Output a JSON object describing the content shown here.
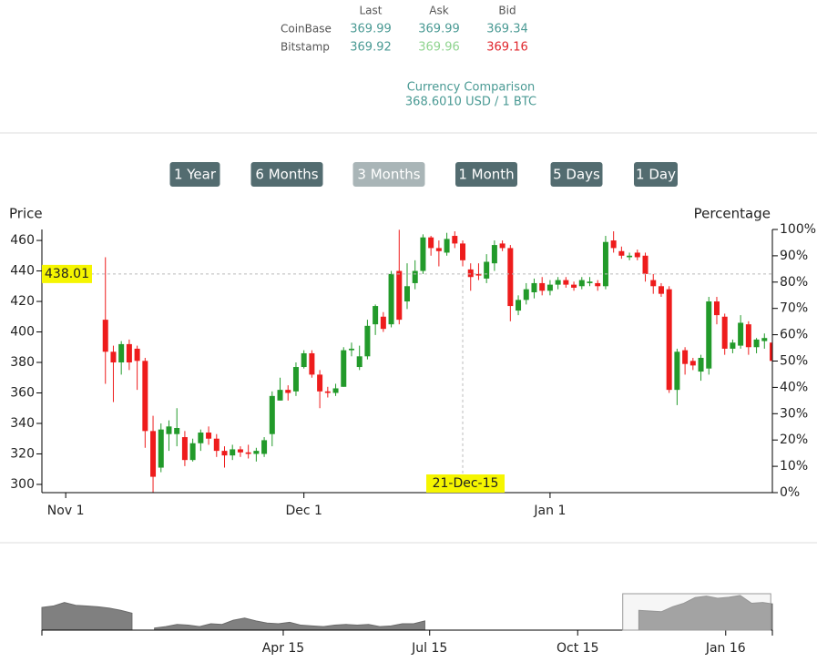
{
  "ticker": {
    "columns": [
      "Last",
      "Ask",
      "Bid"
    ],
    "rows": [
      {
        "exchange": "CoinBase",
        "values": [
          369.99,
          369.99,
          369.34
        ],
        "colors": [
          "#4a9a94",
          "#4a9a94",
          "#4a9a94"
        ]
      },
      {
        "exchange": "Bitstamp",
        "values": [
          369.92,
          369.96,
          369.16
        ],
        "colors": [
          "#4a9a94",
          "#8fd48f",
          "#e0272d"
        ]
      }
    ]
  },
  "comparison": {
    "title": "Currency Comparison",
    "rate": "368.6010 USD / 1 BTC"
  },
  "range_buttons": {
    "labels": [
      "1 Year",
      "6 Months",
      "3 Months",
      "1 Month",
      "5 Days",
      "1 Day"
    ],
    "active_index": 2
  },
  "chart_data": [
    {
      "type": "candlestick",
      "ylabel": "Price",
      "y2label": "Percentage",
      "up_color": "#229a2a",
      "down_color": "#ee1c1c",
      "xlim": [
        "2015-10-29",
        "2016-01-29"
      ],
      "xticks": [
        {
          "value": "2015-11-01",
          "label": "Nov 1"
        },
        {
          "value": "2015-12-01",
          "label": "Dec 1"
        },
        {
          "value": "2016-01-01",
          "label": "Jan 1"
        }
      ],
      "ylim": [
        294.6,
        467.2
      ],
      "yticks": [
        300,
        320,
        340,
        360,
        380,
        400,
        420,
        440,
        460
      ],
      "y2lim": [
        0,
        100
      ],
      "y2ticks": [
        {
          "value": 0,
          "label": "0%"
        },
        {
          "value": 10,
          "label": "10%"
        },
        {
          "value": 20,
          "label": "20%"
        },
        {
          "value": 30,
          "label": "30%"
        },
        {
          "value": 40,
          "label": "40%"
        },
        {
          "value": 50,
          "label": "50%"
        },
        {
          "value": 60,
          "label": "60%"
        },
        {
          "value": 70,
          "label": "70%"
        },
        {
          "value": 80,
          "label": "80%"
        },
        {
          "value": 90,
          "label": "90%"
        },
        {
          "value": 100,
          "label": "100%"
        }
      ],
      "crosshair": {
        "value": 438.01,
        "date": "2015-12-21",
        "date_label": "21-Dec-15"
      },
      "x": [
        "2015-11-06",
        "2015-11-07",
        "2015-11-08",
        "2015-11-09",
        "2015-11-10",
        "2015-11-11",
        "2015-11-12",
        "2015-11-13",
        "2015-11-14",
        "2015-11-15",
        "2015-11-16",
        "2015-11-17",
        "2015-11-18",
        "2015-11-19",
        "2015-11-20",
        "2015-11-21",
        "2015-11-22",
        "2015-11-23",
        "2015-11-24",
        "2015-11-25",
        "2015-11-26",
        "2015-11-27",
        "2015-11-28",
        "2015-11-29",
        "2015-11-30",
        "2015-12-01",
        "2015-12-02",
        "2015-12-03",
        "2015-12-04",
        "2015-12-05",
        "2015-12-06",
        "2015-12-07",
        "2015-12-08",
        "2015-12-09",
        "2015-12-10",
        "2015-12-11",
        "2015-12-12",
        "2015-12-13",
        "2015-12-14",
        "2015-12-15",
        "2015-12-16",
        "2015-12-17",
        "2015-12-18",
        "2015-12-19",
        "2015-12-20",
        "2015-12-21",
        "2015-12-22",
        "2015-12-23",
        "2015-12-24",
        "2015-12-25",
        "2015-12-26",
        "2015-12-27",
        "2015-12-28",
        "2015-12-29",
        "2015-12-30",
        "2015-12-31",
        "2016-01-01",
        "2016-01-02",
        "2016-01-03",
        "2016-01-04",
        "2016-01-05",
        "2016-01-06",
        "2016-01-07",
        "2016-01-08",
        "2016-01-09",
        "2016-01-10",
        "2016-01-11",
        "2016-01-12",
        "2016-01-13",
        "2016-01-14",
        "2016-01-15",
        "2016-01-16",
        "2016-01-17",
        "2016-01-18",
        "2016-01-19",
        "2016-01-20",
        "2016-01-21",
        "2016-01-22",
        "2016-01-23",
        "2016-01-24",
        "2016-01-25",
        "2016-01-26",
        "2016-01-27",
        "2016-01-28",
        "2016-01-29"
      ],
      "open": [
        408,
        387,
        380,
        392,
        389,
        381,
        335,
        311,
        333,
        333,
        331,
        316,
        327,
        334,
        330,
        322,
        319,
        323,
        321,
        320,
        320,
        333,
        355,
        362,
        361,
        377,
        386,
        372,
        361,
        360,
        364,
        388,
        377,
        384,
        405,
        410,
        405,
        440,
        420,
        432,
        440,
        462,
        455,
        452,
        463,
        458,
        441,
        438,
        435,
        445,
        458,
        455,
        414,
        421,
        426,
        432,
        427,
        431,
        434,
        431,
        430,
        432,
        432,
        430,
        460,
        453,
        449,
        452,
        450,
        434,
        430,
        428,
        362,
        388,
        381,
        374,
        376,
        420,
        410,
        389,
        391,
        405,
        390,
        394,
        393
      ],
      "high": [
        449,
        391,
        394,
        395,
        391,
        383,
        345,
        340,
        342,
        350,
        335,
        330,
        336,
        338,
        333,
        325,
        326,
        325,
        326,
        324,
        331,
        361,
        370,
        365,
        380,
        388,
        388,
        375,
        364,
        366,
        390,
        393,
        391,
        408,
        418,
        413,
        440,
        467,
        445,
        447,
        464,
        463,
        460,
        465,
        466,
        460,
        445,
        445,
        451,
        460,
        460,
        457,
        424,
        432,
        435,
        436,
        434,
        436,
        436,
        433,
        436,
        436,
        434,
        463,
        466,
        456,
        452,
        454,
        452,
        438,
        432,
        430,
        389,
        390,
        383,
        385,
        423,
        423,
        412,
        395,
        411,
        407,
        396,
        399,
        396
      ],
      "low": [
        366,
        354,
        372,
        375,
        362,
        324,
        294,
        308,
        322,
        325,
        312,
        315,
        322,
        326,
        318,
        311,
        316,
        318,
        317,
        315,
        318,
        325,
        355,
        355,
        358,
        376,
        370,
        350,
        357,
        358,
        364,
        384,
        375,
        382,
        398,
        400,
        403,
        405,
        415,
        428,
        438,
        450,
        443,
        450,
        455,
        443,
        427,
        434,
        432,
        440,
        453,
        407,
        411,
        418,
        422,
        424,
        424,
        428,
        429,
        427,
        428,
        430,
        427,
        428,
        452,
        448,
        447,
        447,
        433,
        425,
        423,
        360,
        352,
        372,
        375,
        368,
        372,
        405,
        385,
        386,
        389,
        385,
        386,
        389,
        378
      ],
      "close": [
        387,
        380,
        392,
        380,
        381,
        335,
        305,
        336,
        338,
        337,
        316,
        327,
        334,
        330,
        322,
        319,
        323,
        321,
        320,
        322,
        329,
        358,
        362,
        360,
        377,
        386,
        372,
        361,
        360,
        363,
        388,
        389,
        384,
        404,
        417,
        402,
        438,
        408,
        430,
        440,
        462,
        455,
        453,
        461,
        458,
        447,
        436,
        437,
        446,
        457,
        455,
        417,
        421,
        428,
        432,
        427,
        431,
        434,
        431,
        429,
        434,
        433,
        430,
        459,
        455,
        450,
        450,
        449,
        438,
        430,
        425,
        362,
        387,
        379,
        378,
        383,
        420,
        411,
        389,
        393,
        406,
        390,
        395,
        396,
        381
      ]
    },
    {
      "type": "area",
      "color": "#808080",
      "xlim": [
        "2014-11-02",
        "2016-01-30"
      ],
      "ylim": [
        200,
        470
      ],
      "xticks": [
        {
          "value": "2015-04-01",
          "label": "Apr 15"
        },
        {
          "value": "2015-07-01",
          "label": "Jul 15"
        },
        {
          "value": "2015-10-01",
          "label": "Oct 15"
        },
        {
          "value": "2016-01-01",
          "label": "Jan 16"
        }
      ],
      "x": [
        "2014-11-02",
        "2014-11-09",
        "2014-11-16",
        "2014-11-23",
        "2014-11-30",
        "2014-12-07",
        "2014-12-14",
        "2014-12-21",
        "2014-12-28",
        "2015-01-04",
        "2015-01-11",
        "2015-01-18",
        "2015-01-25",
        "2015-02-01",
        "2015-02-08",
        "2015-02-15",
        "2015-02-22",
        "2015-03-01",
        "2015-03-08",
        "2015-03-15",
        "2015-03-22",
        "2015-03-29",
        "2015-04-05",
        "2015-04-12",
        "2015-04-19",
        "2015-04-26",
        "2015-05-03",
        "2015-05-10",
        "2015-05-17",
        "2015-05-24",
        "2015-05-31",
        "2015-06-07",
        "2015-06-14",
        "2015-06-21",
        "2015-06-28",
        "2015-07-05",
        "2015-11-08",
        "2015-11-15",
        "2015-11-22",
        "2015-11-29",
        "2015-12-06",
        "2015-12-13",
        "2015-12-20",
        "2015-12-27",
        "2016-01-03",
        "2016-01-10",
        "2016-01-17",
        "2016-01-24",
        "2016-01-30"
      ],
      "values": [
        360,
        370,
        395,
        375,
        370,
        365,
        355,
        340,
        320,
        null,
        215,
        225,
        240,
        235,
        225,
        245,
        240,
        270,
        285,
        265,
        250,
        245,
        255,
        235,
        230,
        225,
        235,
        240,
        235,
        240,
        225,
        230,
        245,
        245,
        265,
        null,
        340,
        335,
        330,
        365,
        390,
        430,
        440,
        425,
        432,
        445,
        390,
        395,
        385
      ]
    }
  ]
}
